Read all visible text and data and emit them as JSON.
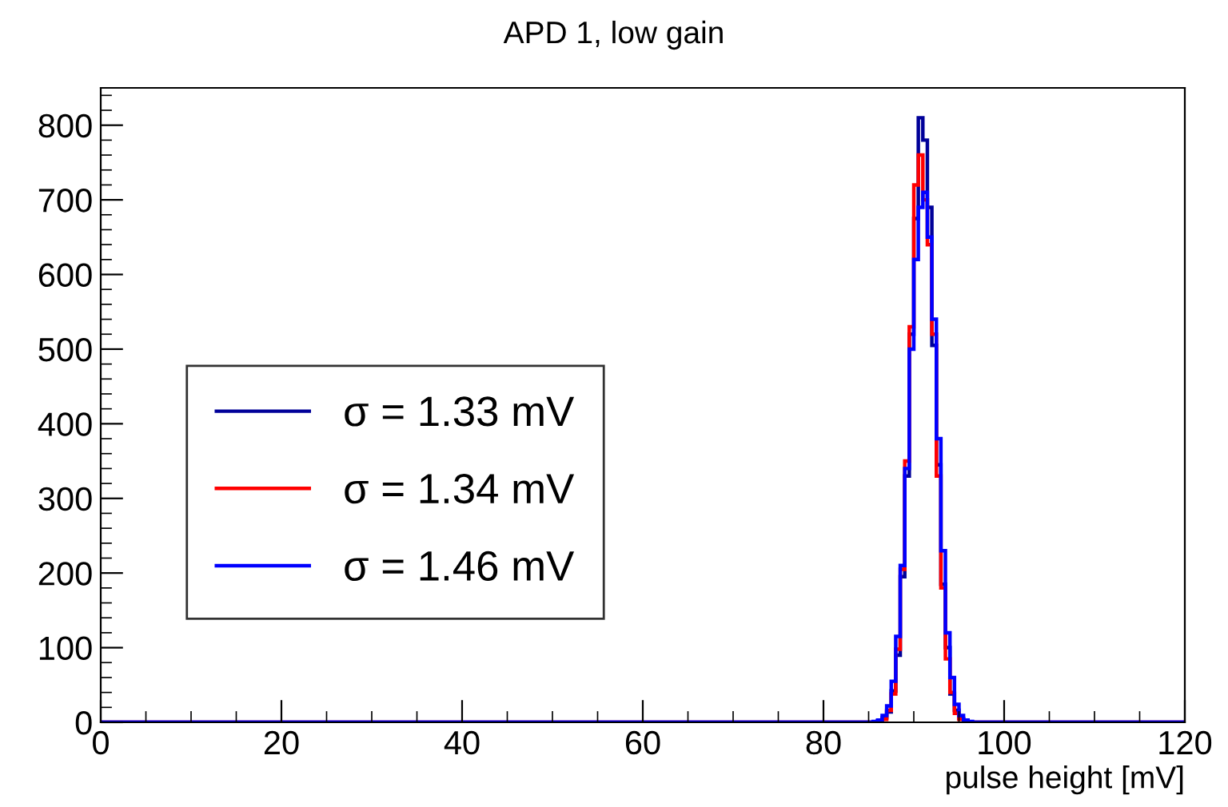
{
  "chart_data": {
    "type": "histogram",
    "title": "APD 1, low gain",
    "xlabel": "pulse height [mV]",
    "bins": [
      0,
      85,
      85.5,
      86,
      86.5,
      87,
      87.5,
      88,
      88.5,
      89,
      89.5,
      90,
      90.5,
      91,
      91.5,
      92,
      92.5,
      93,
      93.5,
      94,
      94.5,
      95,
      95.5,
      96,
      96.5,
      97,
      120
    ],
    "series": [
      {
        "name": "σ = 1.33 mV",
        "color": "#000099",
        "values": [
          0,
          0,
          0,
          2,
          6,
          14,
          42,
          90,
          195,
          330,
          520,
          675,
          810,
          780,
          690,
          505,
          345,
          185,
          100,
          38,
          16,
          5,
          1,
          0,
          0,
          0
        ]
      },
      {
        "name": "σ = 1.34 mV",
        "color": "#ff0000",
        "values": [
          0,
          0,
          0,
          1,
          4,
          16,
          38,
          98,
          205,
          350,
          530,
          720,
          760,
          700,
          640,
          520,
          330,
          180,
          85,
          40,
          12,
          4,
          1,
          0,
          0,
          0
        ]
      },
      {
        "name": "σ = 1.46 mV",
        "color": "#0000ff",
        "values": [
          0,
          0,
          1,
          3,
          9,
          22,
          55,
          115,
          210,
          340,
          500,
          620,
          690,
          710,
          650,
          540,
          380,
          230,
          120,
          60,
          24,
          9,
          3,
          1,
          0,
          0
        ]
      }
    ],
    "xlim": [
      0,
      120
    ],
    "xticks": [
      0,
      20,
      40,
      60,
      80,
      100,
      120
    ],
    "ylim": [
      0,
      850
    ],
    "yticks": [
      0,
      100,
      200,
      300,
      400,
      500,
      600,
      700,
      800
    ],
    "legend": "left",
    "grid": false
  }
}
